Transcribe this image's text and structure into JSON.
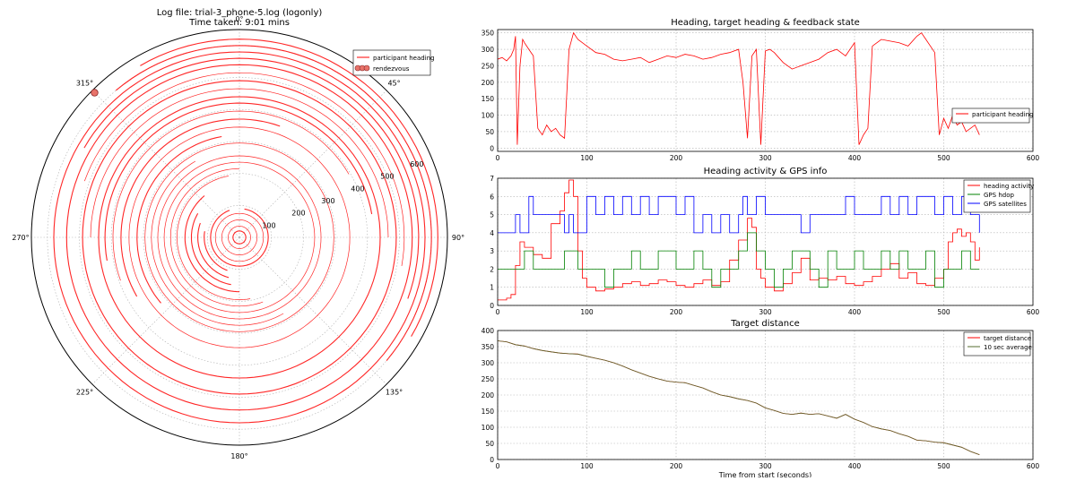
{
  "figure": {
    "title_line1": "Log file: trial-3_phone-5.log (logonly)",
    "title_line2": "Time taken: 9:01 mins"
  },
  "colors": {
    "heading": "#ff0000",
    "rendezvous_fill": "#e8736a",
    "rendezvous_edge": "#8b2a2a",
    "activity": "#ff0000",
    "hdop": "#008000",
    "satellites": "#0000ff",
    "distance": "#ff0000",
    "average": "#556b2f",
    "grid": "#b0b0b0"
  },
  "chart_data": [
    {
      "type": "polar",
      "angle_labels": [
        "0°",
        "45°",
        "90°",
        "135°",
        "180°",
        "225°",
        "270°",
        "315°"
      ],
      "radial_ticks": [
        100,
        200,
        300,
        400,
        500,
        600
      ],
      "rmax": 650,
      "legend": [
        {
          "name": "participant heading",
          "marker": "line"
        },
        {
          "name": "rendezvous",
          "marker": "circle"
        }
      ],
      "legend_placement": "top-right",
      "rendezvous_points": [
        {
          "theta_deg": 315,
          "r": 640
        }
      ],
      "heading_arcs_r_theta": [
        {
          "r": 20,
          "t0": 0,
          "t1": 360
        },
        {
          "r": 35,
          "t0": 0,
          "t1": 360
        },
        {
          "r": 55,
          "t0": 0,
          "t1": 360
        },
        {
          "r": 75,
          "t0": 0,
          "t1": 360
        },
        {
          "r": 90,
          "t0": 10,
          "t1": 340
        },
        {
          "r": 110,
          "t0": 200,
          "t1": 280
        },
        {
          "r": 130,
          "t0": 195,
          "t1": 290
        },
        {
          "r": 150,
          "t0": 190,
          "t1": 300
        },
        {
          "r": 170,
          "t0": 180,
          "t1": 320
        },
        {
          "r": 195,
          "t0": 170,
          "t1": 350
        },
        {
          "r": 215,
          "t0": 160,
          "t1": 360
        },
        {
          "r": 235,
          "t0": 0,
          "t1": 360
        },
        {
          "r": 255,
          "t0": 0,
          "t1": 360
        },
        {
          "r": 275,
          "t0": 150,
          "t1": 330
        },
        {
          "r": 295,
          "t0": 0,
          "t1": 360
        },
        {
          "r": 320,
          "t0": 230,
          "t1": 350
        },
        {
          "r": 345,
          "t0": 0,
          "t1": 360
        },
        {
          "r": 370,
          "t0": 240,
          "t1": 20
        },
        {
          "r": 395,
          "t0": 250,
          "t1": 60
        },
        {
          "r": 420,
          "t0": 260,
          "t1": 80
        },
        {
          "r": 440,
          "t0": 0,
          "t1": 360
        },
        {
          "r": 465,
          "t0": 270,
          "t1": 90
        },
        {
          "r": 490,
          "t0": 0,
          "t1": 360
        },
        {
          "r": 515,
          "t0": 290,
          "t1": 100
        },
        {
          "r": 540,
          "t0": 0,
          "t1": 360
        },
        {
          "r": 560,
          "t0": 300,
          "t1": 110
        },
        {
          "r": 580,
          "t0": 0,
          "t1": 360
        },
        {
          "r": 600,
          "t0": 320,
          "t1": 130
        },
        {
          "r": 620,
          "t0": 330,
          "t1": 120
        }
      ]
    },
    {
      "type": "line",
      "title": "Heading, target heading & feedback state",
      "xlim": [
        0,
        600
      ],
      "ylim": [
        -10,
        360
      ],
      "xticks": [
        0,
        100,
        200,
        300,
        400,
        500,
        600
      ],
      "yticks": [
        0,
        50,
        100,
        150,
        200,
        250,
        300,
        350
      ],
      "grid": true,
      "legend_placement": "right",
      "series": [
        {
          "name": "participant heading",
          "x": [
            0,
            5,
            10,
            15,
            18,
            20,
            22,
            25,
            28,
            30,
            35,
            40,
            45,
            50,
            55,
            60,
            65,
            70,
            75,
            80,
            85,
            90,
            95,
            100,
            110,
            120,
            130,
            140,
            150,
            160,
            170,
            180,
            190,
            200,
            210,
            220,
            230,
            240,
            250,
            260,
            270,
            275,
            280,
            285,
            290,
            295,
            300,
            305,
            310,
            320,
            330,
            340,
            350,
            360,
            370,
            380,
            390,
            400,
            405,
            410,
            415,
            420,
            430,
            440,
            450,
            460,
            470,
            475,
            480,
            490,
            495,
            500,
            505,
            510,
            515,
            520,
            525,
            530,
            535,
            540
          ],
          "y": [
            270,
            275,
            265,
            280,
            300,
            340,
            10,
            250,
            330,
            320,
            300,
            280,
            60,
            40,
            70,
            50,
            60,
            40,
            30,
            300,
            350,
            330,
            320,
            310,
            290,
            285,
            270,
            265,
            270,
            275,
            260,
            270,
            280,
            275,
            285,
            280,
            270,
            275,
            285,
            290,
            300,
            200,
            30,
            280,
            300,
            10,
            295,
            300,
            290,
            260,
            240,
            250,
            260,
            270,
            290,
            300,
            280,
            320,
            10,
            40,
            60,
            310,
            330,
            325,
            320,
            310,
            340,
            350,
            330,
            290,
            40,
            90,
            60,
            100,
            70,
            80,
            50,
            60,
            70,
            40
          ]
        }
      ]
    },
    {
      "type": "line",
      "title": "Heading activity & GPS info",
      "xlim": [
        0,
        600
      ],
      "ylim": [
        0,
        7
      ],
      "xticks": [
        0,
        100,
        200,
        300,
        400,
        500,
        600
      ],
      "yticks": [
        0,
        1,
        2,
        3,
        4,
        5,
        6,
        7
      ],
      "grid": true,
      "legend_placement": "top-right",
      "series": [
        {
          "name": "heading activity",
          "x": [
            0,
            10,
            15,
            20,
            25,
            30,
            40,
            50,
            60,
            70,
            75,
            80,
            85,
            90,
            95,
            100,
            110,
            120,
            130,
            140,
            150,
            160,
            170,
            180,
            190,
            200,
            210,
            220,
            230,
            240,
            250,
            260,
            270,
            280,
            285,
            290,
            295,
            300,
            310,
            320,
            330,
            340,
            350,
            360,
            370,
            380,
            390,
            400,
            410,
            420,
            430,
            440,
            450,
            460,
            470,
            480,
            490,
            500,
            505,
            510,
            515,
            520,
            525,
            530,
            535,
            540
          ],
          "y": [
            0.3,
            0.4,
            0.6,
            2.2,
            3.5,
            3.2,
            2.8,
            2.6,
            4.5,
            5.2,
            6.2,
            6.9,
            6.0,
            3.0,
            1.5,
            1.0,
            0.8,
            0.9,
            1.0,
            1.2,
            1.3,
            1.1,
            1.2,
            1.4,
            1.3,
            1.1,
            1.0,
            1.2,
            1.4,
            1.1,
            1.3,
            2.5,
            3.6,
            4.8,
            4.3,
            2.0,
            1.5,
            1.0,
            0.8,
            1.2,
            1.8,
            2.6,
            1.4,
            1.5,
            1.4,
            1.6,
            1.2,
            1.1,
            1.3,
            1.6,
            2.0,
            2.3,
            1.5,
            1.8,
            1.2,
            1.1,
            1.5,
            2.0,
            3.5,
            4.0,
            4.2,
            3.8,
            4.0,
            3.5,
            2.5,
            3.2
          ]
        },
        {
          "name": "GPS hdop",
          "x": [
            0,
            25,
            30,
            40,
            50,
            60,
            70,
            75,
            90,
            100,
            110,
            120,
            130,
            140,
            150,
            160,
            170,
            180,
            190,
            200,
            210,
            220,
            230,
            240,
            250,
            260,
            270,
            280,
            290,
            300,
            310,
            320,
            330,
            340,
            350,
            360,
            370,
            380,
            390,
            400,
            410,
            420,
            430,
            440,
            450,
            460,
            470,
            480,
            490,
            500,
            510,
            520,
            530,
            540
          ],
          "y": [
            2,
            2,
            3,
            2,
            2,
            2,
            2,
            3,
            2,
            2,
            2,
            1,
            2,
            2,
            3,
            2,
            2,
            3,
            3,
            2,
            2,
            3,
            2,
            1,
            2,
            2,
            3,
            4,
            3,
            2,
            1,
            2,
            3,
            3,
            2,
            1,
            3,
            2,
            2,
            3,
            2,
            2,
            3,
            2,
            3,
            2,
            2,
            3,
            1,
            2,
            2,
            3,
            2,
            2
          ]
        },
        {
          "name": "GPS satellites",
          "x": [
            0,
            20,
            25,
            35,
            40,
            50,
            60,
            75,
            80,
            85,
            100,
            110,
            120,
            130,
            140,
            150,
            160,
            170,
            180,
            190,
            200,
            210,
            220,
            230,
            240,
            250,
            260,
            270,
            275,
            280,
            290,
            300,
            310,
            320,
            330,
            340,
            350,
            360,
            370,
            380,
            390,
            400,
            410,
            420,
            430,
            440,
            450,
            460,
            470,
            480,
            490,
            500,
            510,
            520,
            530,
            540
          ],
          "y": [
            4,
            5,
            4,
            6,
            5,
            5,
            5,
            4,
            5,
            4,
            6,
            5,
            6,
            5,
            6,
            5,
            6,
            5,
            6,
            6,
            5,
            6,
            4,
            5,
            4,
            5,
            4,
            5,
            6,
            5,
            6,
            5,
            5,
            5,
            5,
            4,
            5,
            5,
            5,
            5,
            6,
            5,
            5,
            5,
            6,
            5,
            6,
            5,
            6,
            6,
            5,
            6,
            5,
            6,
            5,
            4
          ]
        }
      ]
    },
    {
      "type": "line",
      "title": "Target distance",
      "xlabel": "Time from start (seconds)",
      "xlim": [
        0,
        600
      ],
      "ylim": [
        0,
        400
      ],
      "xticks": [
        0,
        100,
        200,
        300,
        400,
        500,
        600
      ],
      "yticks": [
        0,
        50,
        100,
        150,
        200,
        250,
        300,
        350,
        400
      ],
      "grid": true,
      "legend_placement": "top-right",
      "series": [
        {
          "name": "target distance",
          "x": [
            0,
            10,
            20,
            30,
            40,
            50,
            60,
            70,
            80,
            90,
            100,
            110,
            120,
            130,
            140,
            150,
            160,
            170,
            180,
            190,
            200,
            210,
            220,
            230,
            240,
            250,
            260,
            270,
            280,
            290,
            300,
            310,
            320,
            330,
            340,
            350,
            360,
            370,
            380,
            390,
            400,
            410,
            420,
            430,
            440,
            450,
            460,
            470,
            480,
            490,
            500,
            510,
            520,
            530,
            540
          ],
          "y": [
            368,
            365,
            356,
            352,
            344,
            338,
            334,
            330,
            328,
            327,
            320,
            314,
            308,
            300,
            290,
            278,
            268,
            258,
            250,
            243,
            240,
            238,
            230,
            222,
            210,
            200,
            195,
            188,
            183,
            175,
            160,
            152,
            143,
            140,
            144,
            140,
            142,
            135,
            128,
            140,
            125,
            115,
            102,
            95,
            90,
            80,
            72,
            60,
            58,
            54,
            52,
            45,
            38,
            25,
            15
          ]
        },
        {
          "name": "10 sec average",
          "x": [
            0,
            10,
            20,
            30,
            40,
            50,
            60,
            70,
            80,
            90,
            100,
            110,
            120,
            130,
            140,
            150,
            160,
            170,
            180,
            190,
            200,
            210,
            220,
            230,
            240,
            250,
            260,
            270,
            280,
            290,
            300,
            310,
            320,
            330,
            340,
            350,
            360,
            370,
            380,
            390,
            400,
            410,
            420,
            430,
            440,
            450,
            460,
            470,
            480,
            490,
            500,
            510,
            520,
            530,
            540
          ],
          "y": [
            368,
            365,
            356,
            352,
            344,
            338,
            334,
            330,
            328,
            327,
            320,
            314,
            308,
            300,
            290,
            278,
            268,
            258,
            250,
            243,
            240,
            238,
            230,
            222,
            210,
            200,
            195,
            188,
            183,
            175,
            160,
            152,
            143,
            140,
            144,
            140,
            142,
            135,
            128,
            140,
            125,
            115,
            102,
            95,
            90,
            80,
            72,
            60,
            58,
            54,
            52,
            45,
            38,
            25,
            15
          ]
        }
      ]
    }
  ]
}
